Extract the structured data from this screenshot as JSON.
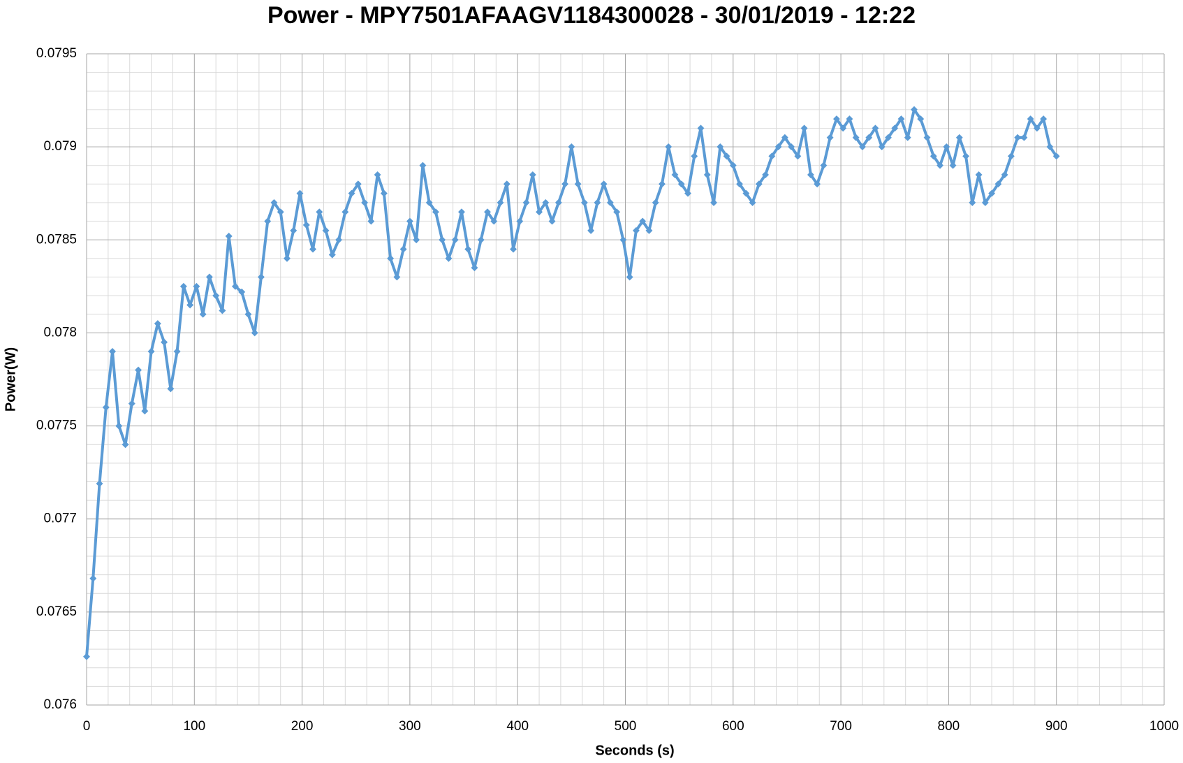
{
  "chart_data": {
    "type": "line",
    "title": "Power - MPY7501AFAAGV1184300028 - 30/01/2019 - 12:22",
    "x_label": "Seconds (s)",
    "y_label": "Power(W)",
    "xlim": [
      0,
      1000
    ],
    "xticks": [
      0,
      100,
      200,
      300,
      400,
      500,
      600,
      700,
      800,
      900,
      1000
    ],
    "ylim": [
      0.076,
      0.0795
    ],
    "yticks": [
      0.076,
      0.0765,
      0.077,
      0.0775,
      0.078,
      0.0785,
      0.079,
      0.0795
    ],
    "grid": true,
    "minor_grid": true,
    "marker": "diamond",
    "x": [
      0,
      6,
      12,
      18,
      24,
      30,
      36,
      42,
      48,
      54,
      60,
      66,
      72,
      78,
      84,
      90,
      96,
      102,
      108,
      114,
      120,
      126,
      132,
      138,
      144,
      150,
      156,
      162,
      168,
      174,
      180,
      186,
      192,
      198,
      204,
      210,
      216,
      222,
      228,
      234,
      240,
      246,
      252,
      258,
      264,
      270,
      276,
      282,
      288,
      294,
      300,
      306,
      312,
      318,
      324,
      330,
      336,
      342,
      348,
      354,
      360,
      366,
      372,
      378,
      384,
      390,
      396,
      402,
      408,
      414,
      420,
      426,
      432,
      438,
      444,
      450,
      456,
      462,
      468,
      474,
      480,
      486,
      492,
      498,
      504,
      510,
      516,
      522,
      528,
      534,
      540,
      546,
      552,
      558,
      564,
      570,
      576,
      582,
      588,
      594,
      600,
      606,
      612,
      618,
      624,
      630,
      636,
      642,
      648,
      654,
      660,
      666,
      672,
      678,
      684,
      690,
      696,
      702,
      708,
      714,
      720,
      726,
      732,
      738,
      744,
      750,
      756,
      762,
      768,
      774,
      780,
      786,
      792,
      798,
      804,
      810,
      816,
      822,
      828,
      834,
      840,
      846,
      852,
      858,
      864,
      870,
      876,
      882,
      888,
      894,
      900
    ],
    "series": [
      {
        "name": "Power",
        "color": "#5b9bd5",
        "values": [
          0.07626,
          0.07668,
          0.07719,
          0.0776,
          0.0779,
          0.0775,
          0.0774,
          0.07762,
          0.0778,
          0.07758,
          0.0779,
          0.07805,
          0.07795,
          0.0777,
          0.0779,
          0.07825,
          0.07815,
          0.07825,
          0.0781,
          0.0783,
          0.0782,
          0.07812,
          0.07852,
          0.07825,
          0.07822,
          0.0781,
          0.078,
          0.0783,
          0.0786,
          0.0787,
          0.07865,
          0.0784,
          0.07855,
          0.07875,
          0.07858,
          0.07845,
          0.07865,
          0.07855,
          0.07842,
          0.0785,
          0.07865,
          0.07875,
          0.0788,
          0.0787,
          0.0786,
          0.07885,
          0.07875,
          0.0784,
          0.0783,
          0.07845,
          0.0786,
          0.0785,
          0.0789,
          0.0787,
          0.07865,
          0.0785,
          0.0784,
          0.0785,
          0.07865,
          0.07845,
          0.07835,
          0.0785,
          0.07865,
          0.0786,
          0.0787,
          0.0788,
          0.07845,
          0.0786,
          0.0787,
          0.07885,
          0.07865,
          0.0787,
          0.0786,
          0.0787,
          0.0788,
          0.079,
          0.0788,
          0.0787,
          0.07855,
          0.0787,
          0.0788,
          0.0787,
          0.07865,
          0.0785,
          0.0783,
          0.07855,
          0.0786,
          0.07855,
          0.0787,
          0.0788,
          0.079,
          0.07885,
          0.0788,
          0.07875,
          0.07895,
          0.0791,
          0.07885,
          0.0787,
          0.079,
          0.07895,
          0.0789,
          0.0788,
          0.07875,
          0.0787,
          0.0788,
          0.07885,
          0.07895,
          0.079,
          0.07905,
          0.079,
          0.07895,
          0.0791,
          0.07885,
          0.0788,
          0.0789,
          0.07905,
          0.07915,
          0.0791,
          0.07915,
          0.07905,
          0.079,
          0.07905,
          0.0791,
          0.079,
          0.07905,
          0.0791,
          0.07915,
          0.07905,
          0.0792,
          0.07915,
          0.07905,
          0.07895,
          0.0789,
          0.079,
          0.0789,
          0.07905,
          0.07895,
          0.0787,
          0.07885,
          0.0787,
          0.07875,
          0.0788,
          0.07885,
          0.07895,
          0.07905,
          0.07905,
          0.07915,
          0.0791,
          0.07915,
          0.079,
          0.07895
        ]
      }
    ]
  }
}
